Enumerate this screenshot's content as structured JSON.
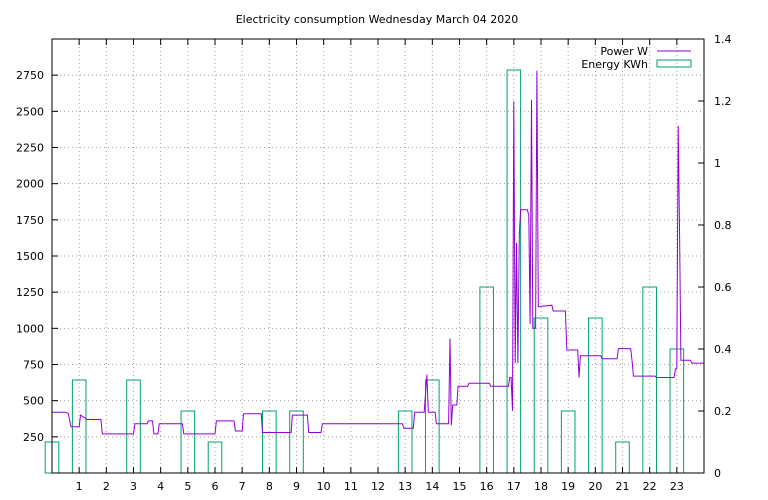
{
  "chart_data": {
    "type": "line",
    "title": "Electricity consumption Wednesday March 04 2020",
    "xlim": [
      0,
      24
    ],
    "x_ticks": [
      "1",
      "2",
      "3",
      "4",
      "5",
      "6",
      "7",
      "8",
      "9",
      "10",
      "11",
      "12",
      "13",
      "14",
      "15",
      "16",
      "17",
      "18",
      "19",
      "20",
      "21",
      "22",
      "23"
    ],
    "y_left": {
      "lim": [
        0,
        3000
      ],
      "ticks": [
        "250",
        "500",
        "750",
        "1000",
        "1250",
        "1500",
        "1750",
        "2000",
        "2250",
        "2500",
        "2750"
      ]
    },
    "y_right": {
      "lim": [
        0,
        1.4
      ],
      "ticks": [
        "0",
        "0.2",
        "0.4",
        "0.6",
        "0.8",
        "1",
        "1.2",
        "1.4"
      ]
    },
    "grid": true,
    "legend_position": "top-right",
    "series": [
      {
        "name": "Power W",
        "type": "line",
        "axis": "left",
        "color": "#9400d3",
        "points": [
          [
            0,
            420
          ],
          [
            0.5,
            420
          ],
          [
            0.6,
            410
          ],
          [
            0.7,
            320
          ],
          [
            1.0,
            320
          ],
          [
            1.05,
            400
          ],
          [
            1.3,
            370
          ],
          [
            1.8,
            370
          ],
          [
            1.85,
            270
          ],
          [
            3.0,
            270
          ],
          [
            3.05,
            340
          ],
          [
            3.5,
            340
          ],
          [
            3.55,
            360
          ],
          [
            3.7,
            360
          ],
          [
            3.75,
            270
          ],
          [
            3.9,
            270
          ],
          [
            3.95,
            340
          ],
          [
            4.8,
            340
          ],
          [
            4.85,
            270
          ],
          [
            6.0,
            270
          ],
          [
            6.05,
            360
          ],
          [
            6.7,
            360
          ],
          [
            6.75,
            290
          ],
          [
            7.0,
            290
          ],
          [
            7.05,
            410
          ],
          [
            7.7,
            410
          ],
          [
            7.75,
            280
          ],
          [
            8.8,
            280
          ],
          [
            8.85,
            400
          ],
          [
            9.4,
            400
          ],
          [
            9.45,
            280
          ],
          [
            9.9,
            280
          ],
          [
            9.95,
            340
          ],
          [
            12.9,
            340
          ],
          [
            12.95,
            310
          ],
          [
            13.3,
            310
          ],
          [
            13.35,
            420
          ],
          [
            13.7,
            420
          ],
          [
            13.8,
            680
          ],
          [
            13.85,
            420
          ],
          [
            14.1,
            420
          ],
          [
            14.15,
            340
          ],
          [
            14.6,
            340
          ],
          [
            14.65,
            930
          ],
          [
            14.7,
            330
          ],
          [
            14.75,
            470
          ],
          [
            14.9,
            470
          ],
          [
            14.95,
            600
          ],
          [
            15.3,
            600
          ],
          [
            15.35,
            620
          ],
          [
            16.1,
            620
          ],
          [
            16.15,
            600
          ],
          [
            16.8,
            600
          ],
          [
            16.85,
            660
          ],
          [
            16.9,
            660
          ],
          [
            16.95,
            430
          ],
          [
            17.0,
            2570
          ],
          [
            17.05,
            760
          ],
          [
            17.1,
            1590
          ],
          [
            17.15,
            760
          ],
          [
            17.2,
            1640
          ],
          [
            17.25,
            1820
          ],
          [
            17.5,
            1820
          ],
          [
            17.55,
            1780
          ],
          [
            17.6,
            1030
          ],
          [
            17.65,
            2580
          ],
          [
            17.7,
            1000
          ],
          [
            17.8,
            1000
          ],
          [
            17.85,
            2780
          ],
          [
            17.9,
            1150
          ],
          [
            18.4,
            1160
          ],
          [
            18.45,
            1120
          ],
          [
            18.9,
            1120
          ],
          [
            18.95,
            850
          ],
          [
            19.35,
            850
          ],
          [
            19.4,
            660
          ],
          [
            19.45,
            810
          ],
          [
            20.2,
            810
          ],
          [
            20.25,
            790
          ],
          [
            20.8,
            790
          ],
          [
            20.85,
            860
          ],
          [
            21.3,
            860
          ],
          [
            21.35,
            780
          ],
          [
            21.4,
            670
          ],
          [
            22.2,
            670
          ],
          [
            22.25,
            660
          ],
          [
            22.9,
            660
          ],
          [
            22.95,
            720
          ],
          [
            23.0,
            720
          ],
          [
            23.05,
            2400
          ],
          [
            23.1,
            1640
          ],
          [
            23.15,
            780
          ],
          [
            23.5,
            780
          ],
          [
            23.55,
            760
          ],
          [
            24.0,
            760
          ]
        ]
      },
      {
        "name": "Energy KWh",
        "type": "bar",
        "axis": "right",
        "color": "#00a070",
        "categories": [
          0,
          1,
          2,
          3,
          4,
          5,
          6,
          7,
          8,
          9,
          10,
          11,
          12,
          13,
          14,
          15,
          16,
          17,
          18,
          19,
          20,
          21,
          22,
          23
        ],
        "values": [
          0.1,
          0.3,
          0,
          0.3,
          0,
          0.2,
          0.1,
          0,
          0.2,
          0.2,
          0,
          0,
          0,
          0.2,
          0.3,
          0,
          0.6,
          1.3,
          0.5,
          0.2,
          0.5,
          0.1,
          0.6,
          0.4
        ]
      }
    ]
  }
}
